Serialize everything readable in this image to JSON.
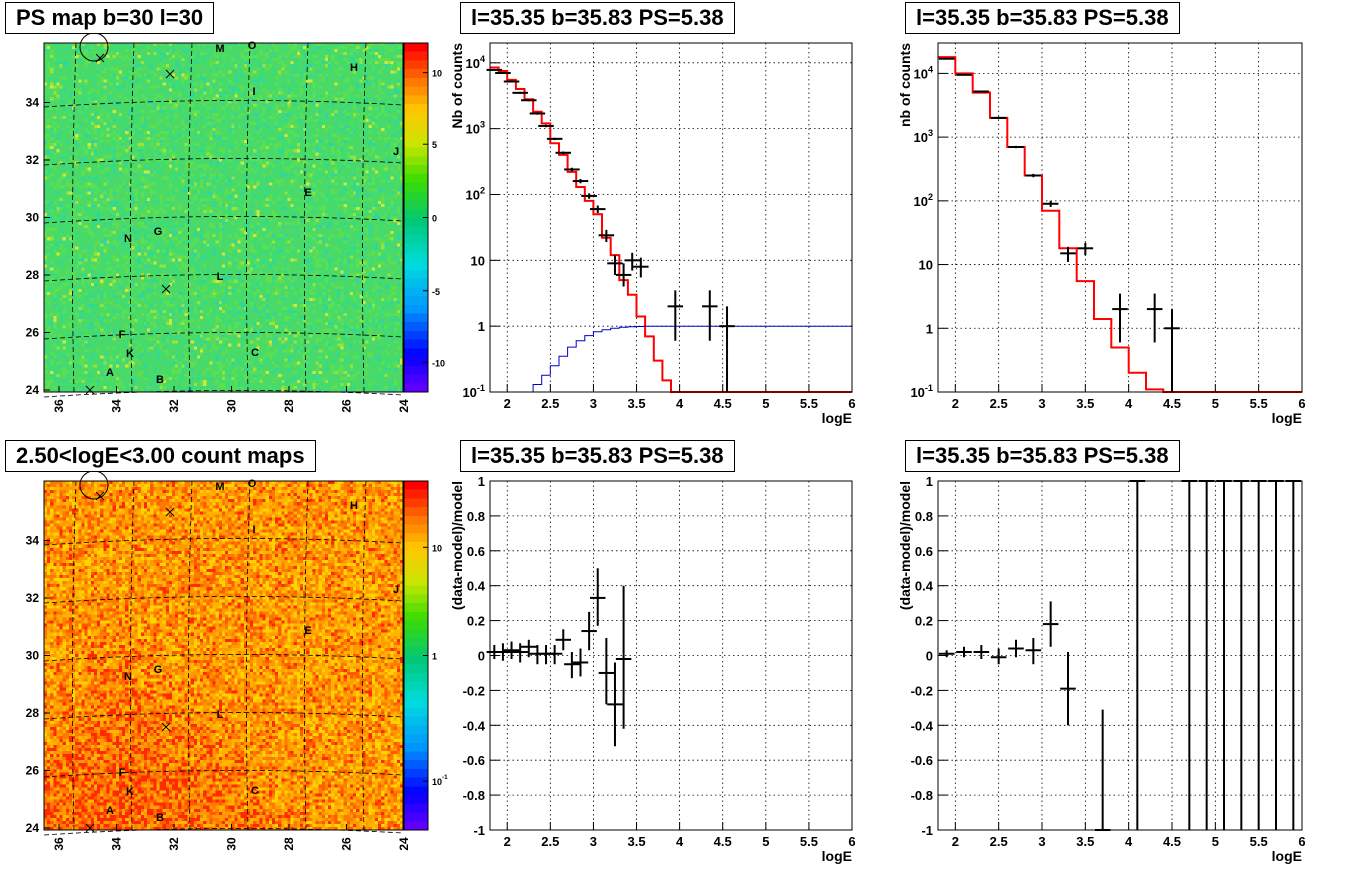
{
  "titles": {
    "map1": "PS map b=30 l=30",
    "spec1": "l=35.35 b=35.83 PS=5.38",
    "spec2": "l=35.35 b=35.83 PS=5.38",
    "map2": "2.50<logE<3.00 count maps",
    "res1": "l=35.35 b=35.83 PS=5.38",
    "res2": "l=35.35 b=35.83 PS=5.38"
  },
  "colors": {
    "model": "#ff0000",
    "acceptance": "#0000cc",
    "data": "#000000"
  },
  "chart_data": [
    {
      "id": "map1",
      "type": "heatmap",
      "x_ticks": [
        "36",
        "34",
        "32",
        "30",
        "28",
        "26",
        "24"
      ],
      "y_ticks": [
        "24",
        "26",
        "28",
        "30",
        "32",
        "34"
      ],
      "colorbar_ticks": [
        "10",
        "5",
        "0",
        "-5",
        "-10"
      ],
      "colorbar_range": [
        -12.5,
        12.5
      ],
      "colormap": "green-dominated",
      "source_labels": [
        "M",
        "O",
        "H",
        "I",
        "J",
        "E",
        "N",
        "G",
        "L",
        "F",
        "K",
        "C",
        "A",
        "B"
      ]
    },
    {
      "id": "spec1",
      "type": "line",
      "xlabel": "logE",
      "ylabel": "Nb of counts",
      "xlim": [
        1.8,
        6
      ],
      "ylim": [
        0.1,
        20000
      ],
      "ylog": true,
      "x_ticks": [
        "2",
        "2.5",
        "3",
        "3.5",
        "4",
        "4.5",
        "5",
        "5.5",
        "6"
      ],
      "y_ticks": [
        "10^-1",
        "1",
        "10",
        "10^2",
        "10^3",
        "10^4"
      ],
      "series": [
        {
          "x": [
            1.8,
            1.9,
            2.0,
            2.1,
            2.2,
            2.3,
            2.4,
            2.5,
            2.6,
            2.7,
            2.8,
            2.9,
            3.0,
            3.1,
            3.2,
            3.3,
            3.4,
            3.5,
            3.6,
            3.7,
            3.8,
            3.9,
            4.0,
            4.1,
            4.2,
            4.3,
            4.4,
            4.5,
            4.6,
            4.7,
            6.0
          ],
          "values": [
            8500,
            7500,
            5500,
            4000,
            2800,
            1800,
            1200,
            600,
            400,
            220,
            130,
            80,
            50,
            22,
            12,
            5,
            3,
            1.4,
            0.7,
            0.3,
            0.15,
            0.1,
            0.1,
            0.1,
            0.1,
            0.1,
            0.1,
            0.1,
            0.1,
            0.1,
            0.1
          ]
        },
        {
          "x": [
            2.2,
            2.3,
            2.4,
            2.5,
            2.6,
            2.7,
            2.8,
            2.9,
            3.0,
            3.1,
            3.2,
            3.3,
            3.4,
            3.5,
            3.6,
            4.0,
            6.0
          ],
          "values": [
            0.1,
            0.13,
            0.18,
            0.25,
            0.35,
            0.48,
            0.6,
            0.72,
            0.82,
            0.88,
            0.93,
            0.96,
            0.98,
            0.99,
            1.0,
            1.0,
            1.0
          ]
        }
      ],
      "points": [
        {
          "x": 1.85,
          "y": 7800,
          "ylo": 7600,
          "yhi": 8000
        },
        {
          "x": 1.95,
          "y": 7000,
          "ylo": 6800,
          "yhi": 7200
        },
        {
          "x": 2.05,
          "y": 5200,
          "ylo": 5050,
          "yhi": 5350
        },
        {
          "x": 2.15,
          "y": 3500,
          "ylo": 3380,
          "yhi": 3620
        },
        {
          "x": 2.25,
          "y": 2700,
          "ylo": 2600,
          "yhi": 2800
        },
        {
          "x": 2.35,
          "y": 1700,
          "ylo": 1630,
          "yhi": 1770
        },
        {
          "x": 2.45,
          "y": 1100,
          "ylo": 1050,
          "yhi": 1150
        },
        {
          "x": 2.55,
          "y": 700,
          "ylo": 670,
          "yhi": 730
        },
        {
          "x": 2.65,
          "y": 430,
          "ylo": 410,
          "yhi": 450
        },
        {
          "x": 2.75,
          "y": 240,
          "ylo": 225,
          "yhi": 255
        },
        {
          "x": 2.85,
          "y": 160,
          "ylo": 148,
          "yhi": 172
        },
        {
          "x": 2.95,
          "y": 95,
          "ylo": 86,
          "yhi": 104
        },
        {
          "x": 3.05,
          "y": 60,
          "ylo": 52,
          "yhi": 68
        },
        {
          "x": 3.15,
          "y": 24,
          "ylo": 19,
          "yhi": 29
        },
        {
          "x": 3.25,
          "y": 9,
          "ylo": 6,
          "yhi": 12
        },
        {
          "x": 3.35,
          "y": 6,
          "ylo": 4,
          "yhi": 9
        },
        {
          "x": 3.45,
          "y": 10,
          "ylo": 7,
          "yhi": 13
        },
        {
          "x": 3.55,
          "y": 8,
          "ylo": 5.5,
          "yhi": 11
        },
        {
          "x": 3.95,
          "y": 2,
          "ylo": 0.6,
          "yhi": 3.5
        },
        {
          "x": 4.35,
          "y": 2,
          "ylo": 0.6,
          "yhi": 3.5
        },
        {
          "x": 4.55,
          "y": 1,
          "ylo": 0.1,
          "yhi": 2
        }
      ]
    },
    {
      "id": "spec2",
      "type": "line",
      "xlabel": "logE",
      "ylabel": "nb of counts",
      "xlim": [
        1.8,
        6
      ],
      "ylim": [
        0.1,
        30000
      ],
      "ylog": true,
      "x_ticks": [
        "2",
        "2.5",
        "3",
        "3.5",
        "4",
        "4.5",
        "5",
        "5.5",
        "6"
      ],
      "y_ticks": [
        "10^-1",
        "1",
        "10",
        "10^2",
        "10^3",
        "10^4"
      ],
      "series": [
        {
          "x": [
            1.8,
            2.0,
            2.2,
            2.4,
            2.6,
            2.8,
            3.0,
            3.2,
            3.4,
            3.6,
            3.8,
            4.0,
            4.2,
            4.4,
            6.0
          ],
          "values": [
            18000,
            10000,
            5000,
            2000,
            700,
            250,
            70,
            18,
            5.5,
            1.4,
            0.5,
            0.2,
            0.11,
            0.1,
            0.1
          ]
        }
      ],
      "points": [
        {
          "x": 1.9,
          "y": 17000,
          "ylo": 16700,
          "yhi": 17300
        },
        {
          "x": 2.1,
          "y": 9500,
          "ylo": 9300,
          "yhi": 9700
        },
        {
          "x": 2.3,
          "y": 5200,
          "ylo": 5050,
          "yhi": 5350
        },
        {
          "x": 2.5,
          "y": 2000,
          "ylo": 1920,
          "yhi": 2080
        },
        {
          "x": 2.7,
          "y": 700,
          "ylo": 670,
          "yhi": 730
        },
        {
          "x": 2.9,
          "y": 250,
          "ylo": 235,
          "yhi": 265
        },
        {
          "x": 3.1,
          "y": 90,
          "ylo": 80,
          "yhi": 100
        },
        {
          "x": 3.3,
          "y": 15,
          "ylo": 11,
          "yhi": 19
        },
        {
          "x": 3.5,
          "y": 18,
          "ylo": 14,
          "yhi": 22
        },
        {
          "x": 3.9,
          "y": 2,
          "ylo": 0.6,
          "yhi": 3.5
        },
        {
          "x": 4.3,
          "y": 2,
          "ylo": 0.6,
          "yhi": 3.5
        },
        {
          "x": 4.5,
          "y": 1,
          "ylo": 0.1,
          "yhi": 2
        }
      ]
    },
    {
      "id": "map2",
      "type": "heatmap",
      "x_ticks": [
        "36",
        "34",
        "32",
        "30",
        "28",
        "26",
        "24"
      ],
      "y_ticks": [
        "24",
        "26",
        "28",
        "30",
        "32",
        "34"
      ],
      "colorbar_ticks": [
        "10",
        "1",
        "10^-1"
      ],
      "colorbar_log": true,
      "colormap": "orange-dominated",
      "source_labels": [
        "M",
        "O",
        "H",
        "I",
        "J",
        "E",
        "N",
        "G",
        "L",
        "F",
        "K",
        "C",
        "A",
        "B"
      ]
    },
    {
      "id": "res1",
      "type": "scatter",
      "xlabel": "logE",
      "ylabel": "(data-model)/model",
      "xlim": [
        1.8,
        6
      ],
      "ylim": [
        -1,
        1
      ],
      "x_ticks": [
        "2",
        "2.5",
        "3",
        "3.5",
        "4",
        "4.5",
        "5",
        "5.5",
        "6"
      ],
      "y_ticks": [
        "-1",
        "-0.8",
        "-0.6",
        "-0.4",
        "-0.2",
        "0",
        "0.2",
        "0.4",
        "0.6",
        "0.8",
        "1"
      ],
      "points": [
        {
          "x": 1.85,
          "y": 0.02,
          "ylo": -0.02,
          "yhi": 0.06
        },
        {
          "x": 1.95,
          "y": 0.02,
          "ylo": -0.03,
          "yhi": 0.07
        },
        {
          "x": 2.05,
          "y": 0.03,
          "ylo": -0.02,
          "yhi": 0.08
        },
        {
          "x": 2.15,
          "y": 0.02,
          "ylo": -0.04,
          "yhi": 0.07
        },
        {
          "x": 2.25,
          "y": 0.05,
          "ylo": -0.01,
          "yhi": 0.09
        },
        {
          "x": 2.35,
          "y": 0.01,
          "ylo": -0.05,
          "yhi": 0.06
        },
        {
          "x": 2.45,
          "y": 0.01,
          "ylo": -0.05,
          "yhi": 0.06
        },
        {
          "x": 2.55,
          "y": 0.01,
          "ylo": -0.05,
          "yhi": 0.06
        },
        {
          "x": 2.65,
          "y": 0.09,
          "ylo": 0.03,
          "yhi": 0.15
        },
        {
          "x": 2.75,
          "y": -0.05,
          "ylo": -0.13,
          "yhi": 0.02
        },
        {
          "x": 2.85,
          "y": -0.04,
          "ylo": -0.12,
          "yhi": 0.04
        },
        {
          "x": 2.95,
          "y": 0.14,
          "ylo": 0.03,
          "yhi": 0.25
        },
        {
          "x": 3.05,
          "y": 0.33,
          "ylo": 0.17,
          "yhi": 0.5
        },
        {
          "x": 3.15,
          "y": -0.1,
          "ylo": -0.28,
          "yhi": 0.1
        },
        {
          "x": 3.25,
          "y": -0.28,
          "ylo": -0.52,
          "yhi": -0.04
        },
        {
          "x": 3.35,
          "y": -0.02,
          "ylo": -0.42,
          "yhi": 0.4
        }
      ]
    },
    {
      "id": "res2",
      "type": "scatter",
      "xlabel": "logE",
      "ylabel": "(data-model)/model",
      "xlim": [
        1.8,
        6
      ],
      "ylim": [
        -1,
        1
      ],
      "x_ticks": [
        "2",
        "2.5",
        "3",
        "3.5",
        "4",
        "4.5",
        "5",
        "5.5",
        "6"
      ],
      "y_ticks": [
        "-1",
        "-0.8",
        "-0.6",
        "-0.4",
        "-0.2",
        "0",
        "0.2",
        "0.4",
        "0.6",
        "0.8",
        "1"
      ],
      "points": [
        {
          "x": 1.9,
          "y": 0.01,
          "ylo": -0.01,
          "yhi": 0.03
        },
        {
          "x": 2.1,
          "y": 0.02,
          "ylo": -0.01,
          "yhi": 0.05
        },
        {
          "x": 2.3,
          "y": 0.02,
          "ylo": -0.02,
          "yhi": 0.06
        },
        {
          "x": 2.5,
          "y": -0.01,
          "ylo": -0.05,
          "yhi": 0.04
        },
        {
          "x": 2.7,
          "y": 0.04,
          "ylo": -0.01,
          "yhi": 0.09
        },
        {
          "x": 2.9,
          "y": 0.03,
          "ylo": -0.05,
          "yhi": 0.1
        },
        {
          "x": 3.1,
          "y": 0.18,
          "ylo": 0.05,
          "yhi": 0.31
        },
        {
          "x": 3.3,
          "y": -0.19,
          "ylo": -0.4,
          "yhi": 0.02
        },
        {
          "x": 3.7,
          "y": -1.0,
          "ylo": -1.0,
          "yhi": -0.31
        },
        {
          "x": 4.1,
          "y": 1.0,
          "ylo": -1.0,
          "yhi": 1.0
        },
        {
          "x": 4.7,
          "y": 1.0,
          "ylo": -1.0,
          "yhi": 1.0
        },
        {
          "x": 4.9,
          "y": 1.0,
          "ylo": -1.0,
          "yhi": 1.0
        },
        {
          "x": 5.1,
          "y": 1.0,
          "ylo": -1.0,
          "yhi": 1.0
        },
        {
          "x": 5.3,
          "y": 1.0,
          "ylo": -1.0,
          "yhi": 1.0
        },
        {
          "x": 5.5,
          "y": 1.0,
          "ylo": -1.0,
          "yhi": 1.0
        },
        {
          "x": 5.7,
          "y": 1.0,
          "ylo": -1.0,
          "yhi": 1.0
        },
        {
          "x": 5.9,
          "y": 1.0,
          "ylo": -1.0,
          "yhi": 1.0
        }
      ]
    }
  ]
}
